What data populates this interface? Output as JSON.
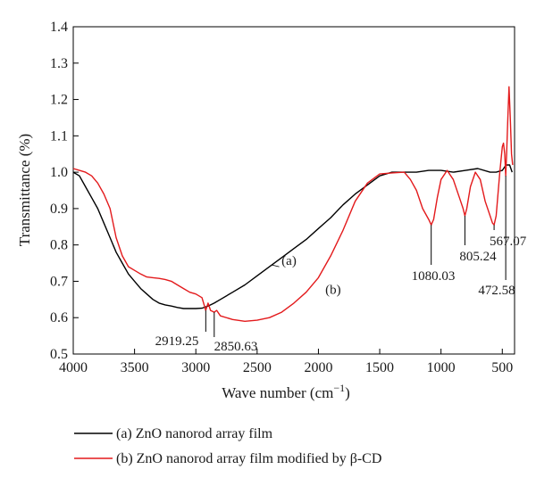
{
  "chart_data": {
    "type": "line",
    "xlabel_main": "Wave number (cm",
    "xlabel_sup": "−1",
    "xlabel_close": ")",
    "ylabel": "Transmittance (%)",
    "xlim": [
      4000,
      400
    ],
    "ylim": [
      0.5,
      1.4
    ],
    "x_reversed": true,
    "grid": false,
    "legend_position": "below-chart",
    "x_ticks": [
      "4000",
      "3500",
      "3000",
      "2500",
      "2000",
      "1500",
      "1000",
      "500"
    ],
    "x_tick_values": [
      4000,
      3500,
      3000,
      2500,
      2000,
      1500,
      1000,
      500
    ],
    "y_ticks": [
      "0.5",
      "0.6",
      "0.7",
      "0.8",
      "0.9",
      "1.0",
      "1.1",
      "1.2",
      "1.3",
      "1.4"
    ],
    "y_tick_values": [
      0.5,
      0.6,
      0.7,
      0.8,
      0.9,
      1.0,
      1.1,
      1.2,
      1.3,
      1.4
    ],
    "series": [
      {
        "name": "(a) ZnO nanorod array film",
        "curve_label": "(a)",
        "color": "#000000",
        "x": [
          4000,
          3950,
          3900,
          3850,
          3800,
          3750,
          3700,
          3650,
          3600,
          3550,
          3500,
          3450,
          3400,
          3350,
          3300,
          3250,
          3200,
          3150,
          3100,
          3050,
          3000,
          2950,
          2900,
          2850,
          2800,
          2700,
          2600,
          2500,
          2400,
          2300,
          2200,
          2100,
          2000,
          1900,
          1800,
          1700,
          1600,
          1500,
          1400,
          1300,
          1200,
          1100,
          1000,
          900,
          800,
          700,
          600,
          550,
          500,
          470,
          440,
          420
        ],
        "y": [
          1.0,
          0.99,
          0.96,
          0.93,
          0.9,
          0.86,
          0.82,
          0.78,
          0.75,
          0.72,
          0.7,
          0.68,
          0.665,
          0.65,
          0.64,
          0.635,
          0.632,
          0.628,
          0.625,
          0.625,
          0.625,
          0.626,
          0.632,
          0.64,
          0.65,
          0.67,
          0.69,
          0.715,
          0.74,
          0.765,
          0.79,
          0.815,
          0.845,
          0.875,
          0.91,
          0.94,
          0.965,
          0.99,
          1.0,
          1.0,
          1.0,
          1.005,
          1.005,
          1.0,
          1.005,
          1.01,
          1.0,
          1.0,
          1.005,
          1.02,
          1.02,
          1.0
        ]
      },
      {
        "name": "(b) ZnO nanorod array film modified by β-CD",
        "curve_label": "(b)",
        "color": "#e31a1c",
        "x": [
          4000,
          3950,
          3900,
          3850,
          3800,
          3750,
          3700,
          3650,
          3600,
          3550,
          3500,
          3450,
          3400,
          3350,
          3300,
          3250,
          3200,
          3150,
          3100,
          3050,
          3000,
          2950,
          2919,
          2900,
          2880,
          2850,
          2830,
          2800,
          2700,
          2600,
          2500,
          2400,
          2300,
          2200,
          2100,
          2000,
          1900,
          1800,
          1700,
          1600,
          1500,
          1400,
          1300,
          1250,
          1200,
          1150,
          1100,
          1080,
          1060,
          1030,
          1000,
          950,
          900,
          850,
          820,
          805,
          790,
          760,
          720,
          680,
          640,
          600,
          580,
          567,
          550,
          520,
          500,
          490,
          480,
          472,
          465,
          455,
          445,
          435,
          425,
          415
        ],
        "y": [
          1.01,
          1.005,
          1.0,
          0.99,
          0.97,
          0.94,
          0.9,
          0.82,
          0.77,
          0.74,
          0.73,
          0.72,
          0.712,
          0.71,
          0.708,
          0.705,
          0.7,
          0.69,
          0.68,
          0.67,
          0.665,
          0.655,
          0.62,
          0.64,
          0.62,
          0.615,
          0.62,
          0.605,
          0.595,
          0.59,
          0.593,
          0.6,
          0.615,
          0.64,
          0.67,
          0.71,
          0.77,
          0.84,
          0.92,
          0.97,
          0.995,
          0.998,
          1.0,
          0.98,
          0.95,
          0.9,
          0.87,
          0.855,
          0.87,
          0.93,
          0.98,
          1.005,
          0.98,
          0.93,
          0.9,
          0.88,
          0.9,
          0.96,
          1.0,
          0.98,
          0.92,
          0.88,
          0.86,
          0.855,
          0.88,
          1.0,
          1.07,
          1.08,
          1.05,
          0.99,
          1.05,
          1.15,
          1.235,
          1.15,
          1.05,
          1.02
        ]
      }
    ],
    "annotations": [
      {
        "text": "2919.25",
        "x": 2919,
        "y": 0.62
      },
      {
        "text": "2850.63",
        "x": 2850,
        "y": 0.615
      },
      {
        "text": "1080.03",
        "x": 1080,
        "y": 0.855
      },
      {
        "text": "805.24",
        "x": 805,
        "y": 0.88
      },
      {
        "text": "567.07",
        "x": 567,
        "y": 0.855
      },
      {
        "text": "472.58",
        "x": 472,
        "y": 0.99
      }
    ]
  }
}
